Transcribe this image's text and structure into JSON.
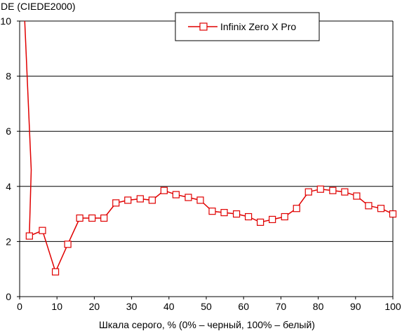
{
  "chart_data": {
    "type": "line",
    "title": "",
    "ylabel": "DE (CIEDE2000)",
    "xlabel": "Шкала серого, % (0% – черный, 100% – белый)",
    "xlim": [
      0,
      100
    ],
    "ylim": [
      0,
      10
    ],
    "x_ticks": [
      0,
      10,
      20,
      30,
      40,
      50,
      60,
      70,
      80,
      90,
      100
    ],
    "y_ticks": [
      0,
      2,
      4,
      6,
      8,
      10
    ],
    "grid": "horizontal",
    "legend_position": "top-right",
    "series": [
      {
        "name": "Infinix Zero X Pro",
        "color": "#e00000",
        "marker": "square",
        "points": [
          [
            1.2,
            10.5
          ],
          [
            3.1,
            4.6
          ],
          [
            2.6,
            2.2
          ],
          [
            6.1,
            2.4
          ],
          [
            9.6,
            0.9
          ],
          [
            12.9,
            1.9
          ],
          [
            16.1,
            2.85
          ],
          [
            19.4,
            2.85
          ],
          [
            22.6,
            2.85
          ],
          [
            25.8,
            3.4
          ],
          [
            29.0,
            3.5
          ],
          [
            32.3,
            3.55
          ],
          [
            35.5,
            3.5
          ],
          [
            38.7,
            3.85
          ],
          [
            41.9,
            3.7
          ],
          [
            45.2,
            3.6
          ],
          [
            48.4,
            3.5
          ],
          [
            51.6,
            3.1
          ],
          [
            54.8,
            3.05
          ],
          [
            58.1,
            3.0
          ],
          [
            61.3,
            2.9
          ],
          [
            64.5,
            2.7
          ],
          [
            67.7,
            2.8
          ],
          [
            71.0,
            2.9
          ],
          [
            74.2,
            3.2
          ],
          [
            77.4,
            3.8
          ],
          [
            80.6,
            3.9
          ],
          [
            83.9,
            3.85
          ],
          [
            87.1,
            3.8
          ],
          [
            90.3,
            3.65
          ],
          [
            93.5,
            3.3
          ],
          [
            96.8,
            3.2
          ],
          [
            100.0,
            3.0
          ]
        ],
        "markers_hidden_indices": [
          0,
          1
        ]
      }
    ]
  }
}
